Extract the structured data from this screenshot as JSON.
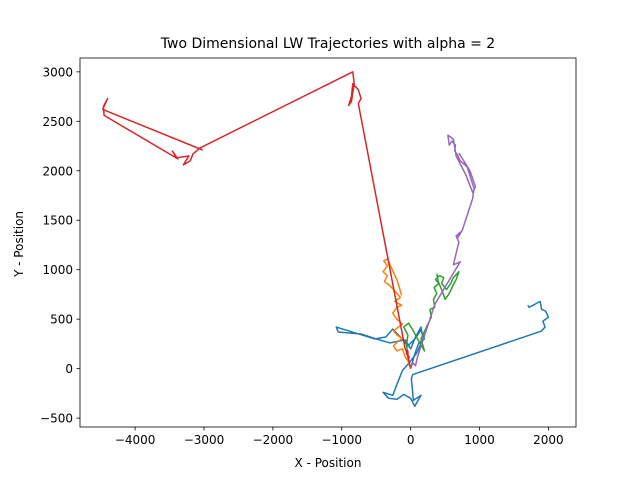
{
  "chart_data": {
    "type": "line",
    "title": "Two Dimensional LW Trajectories with alpha = 2",
    "xlabel": "X - Position",
    "ylabel": "Y - Position",
    "xlim": [
      -4800,
      2400
    ],
    "ylim": [
      -590,
      3140
    ],
    "xticks": [
      -4000,
      -3000,
      -2000,
      -1000,
      0,
      1000,
      2000
    ],
    "yticks": [
      -500,
      0,
      500,
      1000,
      1500,
      2000,
      2500,
      3000
    ],
    "xtick_labels": [
      "−4000",
      "−3000",
      "−2000",
      "−1000",
      "0",
      "1000",
      "2000"
    ],
    "ytick_labels": [
      "−500",
      "0",
      "500",
      "1000",
      "1500",
      "2000",
      "2500",
      "3000"
    ],
    "grid": false,
    "legend": "none",
    "series": [
      {
        "color": "#1f77b4",
        "points": [
          [
            0,
            0
          ],
          [
            60,
            150
          ],
          [
            120,
            260
          ],
          [
            200,
            300
          ],
          [
            150,
            390
          ],
          [
            60,
            300
          ],
          [
            -40,
            230
          ],
          [
            -150,
            320
          ],
          [
            -260,
            400
          ],
          [
            -360,
            320
          ],
          [
            -520,
            300
          ],
          [
            -1080,
            420
          ],
          [
            -1050,
            370
          ],
          [
            -720,
            350
          ],
          [
            -500,
            300
          ],
          [
            -300,
            260
          ],
          [
            -80,
            290
          ],
          [
            0,
            200
          ],
          [
            70,
            320
          ],
          [
            150,
            420
          ],
          [
            180,
            300
          ],
          [
            90,
            160
          ],
          [
            -20,
            60
          ],
          [
            -120,
            -20
          ],
          [
            -200,
            -160
          ],
          [
            -260,
            -270
          ],
          [
            -400,
            -240
          ],
          [
            -320,
            -300
          ],
          [
            -200,
            -310
          ],
          [
            -100,
            -260
          ],
          [
            0,
            -300
          ],
          [
            60,
            -380
          ],
          [
            100,
            -330
          ],
          [
            150,
            -270
          ],
          [
            40,
            -320
          ],
          [
            10,
            -100
          ],
          [
            30,
            -60
          ],
          [
            1900,
            380
          ],
          [
            1950,
            420
          ],
          [
            1920,
            480
          ],
          [
            2000,
            520
          ],
          [
            1960,
            580
          ],
          [
            1900,
            600
          ],
          [
            1880,
            680
          ],
          [
            1720,
            620
          ],
          [
            1700,
            640
          ]
        ]
      },
      {
        "color": "#ff7f0e",
        "points": [
          [
            0,
            0
          ],
          [
            -40,
            80
          ],
          [
            -80,
            120
          ],
          [
            -120,
            200
          ],
          [
            -200,
            180
          ],
          [
            -250,
            230
          ],
          [
            -180,
            280
          ],
          [
            -120,
            300
          ],
          [
            -200,
            340
          ],
          [
            -250,
            380
          ],
          [
            -180,
            420
          ],
          [
            -120,
            450
          ],
          [
            -200,
            500
          ],
          [
            -260,
            560
          ],
          [
            -200,
            620
          ],
          [
            -130,
            640
          ],
          [
            -230,
            680
          ],
          [
            -150,
            720
          ],
          [
            -250,
            800
          ],
          [
            -320,
            850
          ],
          [
            -380,
            880
          ],
          [
            -340,
            940
          ],
          [
            -400,
            980
          ],
          [
            -340,
            1040
          ],
          [
            -390,
            1090
          ],
          [
            -330,
            1110
          ],
          [
            -300,
            1050
          ],
          [
            -200,
            900
          ],
          [
            -130,
            740
          ]
        ]
      },
      {
        "color": "#2ca02c",
        "points": [
          [
            0,
            0
          ],
          [
            -40,
            120
          ],
          [
            -60,
            240
          ],
          [
            -40,
            340
          ],
          [
            -100,
            420
          ],
          [
            -30,
            460
          ],
          [
            40,
            380
          ],
          [
            100,
            300
          ],
          [
            150,
            240
          ],
          [
            200,
            180
          ],
          [
            150,
            300
          ],
          [
            230,
            420
          ],
          [
            300,
            520
          ],
          [
            280,
            600
          ],
          [
            350,
            620
          ],
          [
            330,
            700
          ],
          [
            380,
            760
          ],
          [
            340,
            820
          ],
          [
            410,
            860
          ],
          [
            360,
            900
          ],
          [
            420,
            940
          ],
          [
            480,
            920
          ],
          [
            450,
            860
          ],
          [
            520,
            800
          ],
          [
            580,
            860
          ],
          [
            620,
            920
          ],
          [
            700,
            980
          ],
          [
            660,
            900
          ],
          [
            620,
            850
          ],
          [
            560,
            760
          ],
          [
            500,
            700
          ],
          [
            460,
            780
          ],
          [
            400,
            880
          ],
          [
            380,
            960
          ]
        ]
      },
      {
        "color": "#d62728",
        "points": [
          [
            0,
            0
          ],
          [
            -40,
            120
          ],
          [
            -40,
            180
          ],
          [
            -60,
            150
          ],
          [
            -20,
            110
          ],
          [
            -80,
            200
          ],
          [
            -760,
            2680
          ],
          [
            -720,
            2730
          ],
          [
            -760,
            2820
          ],
          [
            -840,
            2880
          ],
          [
            -860,
            2750
          ],
          [
            -900,
            2660
          ],
          [
            -860,
            2700
          ],
          [
            -820,
            2880
          ],
          [
            -840,
            3000
          ],
          [
            -3060,
            2230
          ],
          [
            -3160,
            2170
          ],
          [
            -3200,
            2100
          ],
          [
            -3300,
            2060
          ],
          [
            -3220,
            2150
          ],
          [
            -3400,
            2130
          ],
          [
            -3460,
            2200
          ],
          [
            -3380,
            2120
          ],
          [
            -4450,
            2560
          ],
          [
            -4460,
            2650
          ],
          [
            -4400,
            2730
          ],
          [
            -4470,
            2620
          ],
          [
            -3020,
            2210
          ]
        ]
      },
      {
        "color": "#9467bd",
        "points": [
          [
            0,
            0
          ],
          [
            30,
            60
          ],
          [
            70,
            30
          ],
          [
            100,
            120
          ],
          [
            350,
            650
          ],
          [
            720,
            1080
          ],
          [
            620,
            1050
          ],
          [
            700,
            1280
          ],
          [
            660,
            1340
          ],
          [
            720,
            1380
          ],
          [
            680,
            1320
          ],
          [
            750,
            1400
          ],
          [
            900,
            1720
          ],
          [
            920,
            1820
          ],
          [
            820,
            2040
          ],
          [
            720,
            2100
          ],
          [
            680,
            2160
          ],
          [
            640,
            2200
          ],
          [
            650,
            2260
          ],
          [
            600,
            2300
          ],
          [
            560,
            2260
          ],
          [
            540,
            2360
          ],
          [
            620,
            2320
          ],
          [
            660,
            2150
          ],
          [
            800,
            1960
          ],
          [
            900,
            1780
          ],
          [
            940,
            1840
          ],
          [
            860,
            2000
          ],
          [
            700,
            2180
          ]
        ]
      }
    ]
  }
}
